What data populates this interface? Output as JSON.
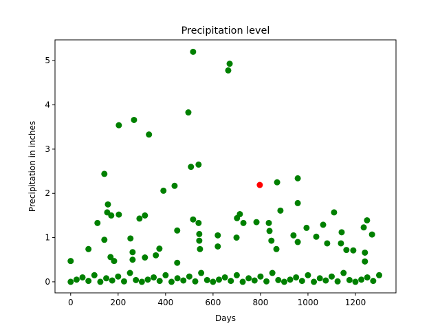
{
  "chart_data": {
    "type": "scatter",
    "title": "Precipitation level",
    "x_label": "Days",
    "y_label": "Precipitation in inches",
    "xlim": [
      -66,
      1371
    ],
    "ylim": [
      -0.25,
      5.47
    ],
    "xticks": [
      0,
      200,
      400,
      600,
      800,
      1000,
      1200
    ],
    "yticks": [
      0,
      1,
      2,
      3,
      4,
      5
    ],
    "series": [
      {
        "color": "#008000",
        "x": [
          0,
          25,
          50,
          75,
          100,
          125,
          150,
          175,
          200,
          225,
          250,
          275,
          300,
          325,
          350,
          375,
          400,
          425,
          450,
          475,
          500,
          525,
          550,
          575,
          600,
          625,
          650,
          675,
          700,
          725,
          750,
          775,
          800,
          825,
          850,
          875,
          900,
          925,
          950,
          975,
          1000,
          1025,
          1050,
          1075,
          1100,
          1125,
          1150,
          1175,
          1200,
          1225,
          1250,
          1275,
          1300,
          0,
          75,
          113,
          142,
          142,
          157,
          154,
          168,
          171,
          183,
          203,
          203,
          252,
          261,
          267,
          261,
          290,
          313,
          313,
          330,
          359,
          374,
          391,
          438,
          449,
          449,
          496,
          507,
          516,
          516,
          539,
          539,
          542,
          542,
          545,
          664,
          670,
          620,
          620,
          699,
          701,
          713,
          728,
          783,
          835,
          838,
          846,
          867,
          870,
          884,
          939,
          957,
          957,
          957,
          994,
          1035,
          1064,
          1081,
          1110,
          1142,
          1139,
          1162,
          1191,
          1235,
          1249,
          1270,
          1240,
          1240
        ],
        "values": [
          0,
          0.05,
          0.1,
          0.02,
          0.15,
          0,
          0.08,
          0.03,
          0.12,
          0.01,
          0.2,
          0.04,
          0,
          0.05,
          0.1,
          0.02,
          0.15,
          0,
          0.08,
          0.03,
          0.12,
          0.01,
          0.2,
          0.04,
          0,
          0.05,
          0.1,
          0.02,
          0.15,
          0,
          0.08,
          0.03,
          0.12,
          0.01,
          0.2,
          0.04,
          0,
          0.05,
          0.1,
          0.02,
          0.15,
          0,
          0.08,
          0.03,
          0.12,
          0.01,
          0.2,
          0.04,
          0,
          0.05,
          0.1,
          0.02,
          0.15,
          0.47,
          0.74,
          1.33,
          2.44,
          0.95,
          1.75,
          1.57,
          0.56,
          1.5,
          0.47,
          3.54,
          1.52,
          0.98,
          0.67,
          3.66,
          0.5,
          1.43,
          1.5,
          0.55,
          3.33,
          0.6,
          0.75,
          2.06,
          2.17,
          1.16,
          0.43,
          3.83,
          2.6,
          1.41,
          5.2,
          2.65,
          1.33,
          1.08,
          0.93,
          0.74,
          4.78,
          4.93,
          1.05,
          0.8,
          1.0,
          1.44,
          1.53,
          1.33,
          1.35,
          1.33,
          1.15,
          0.93,
          0.74,
          2.25,
          1.61,
          1.05,
          2.34,
          1.78,
          0.9,
          1.22,
          1.02,
          1.29,
          0.87,
          1.57,
          1.12,
          0.87,
          0.72,
          0.71,
          1.23,
          1.39,
          1.07,
          0.66,
          0.46
        ]
      },
      {
        "color": "#ff0000",
        "x": [
          797
        ],
        "values": [
          2.19
        ]
      }
    ]
  }
}
